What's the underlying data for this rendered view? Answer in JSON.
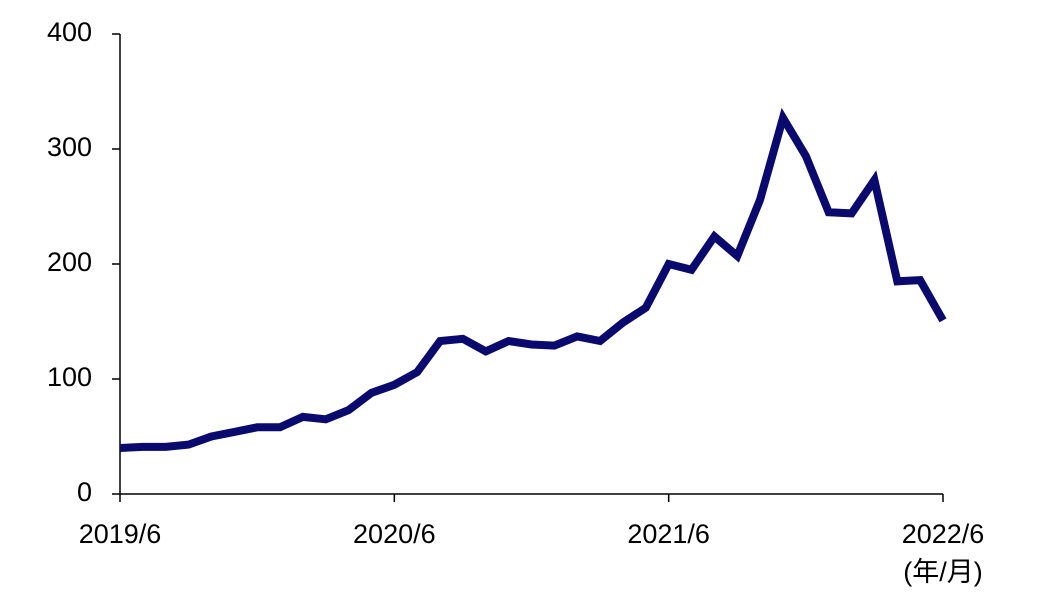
{
  "chart_data": {
    "type": "line",
    "x_axis_label": "(年/月)",
    "categories": [
      "2019/6",
      null,
      null,
      null,
      null,
      null,
      null,
      null,
      null,
      null,
      null,
      null,
      "2020/6",
      null,
      null,
      null,
      null,
      null,
      null,
      null,
      null,
      null,
      null,
      null,
      "2021/6",
      null,
      null,
      null,
      null,
      null,
      null,
      null,
      null,
      null,
      null,
      null,
      "2022/6"
    ],
    "series": [
      {
        "color": "#0a0a6e",
        "values": [
          40,
          41,
          41,
          43,
          50,
          54,
          58,
          58,
          67,
          65,
          73,
          88,
          95,
          106,
          133,
          135,
          124,
          133,
          130,
          129,
          137,
          133,
          149,
          162,
          200,
          195,
          224,
          207,
          256,
          327,
          294,
          245,
          244,
          273,
          185,
          186,
          151
        ]
      }
    ],
    "ylim": [
      0,
      400
    ],
    "yticks": [
      0,
      100,
      200,
      300,
      400
    ],
    "grid": false
  }
}
